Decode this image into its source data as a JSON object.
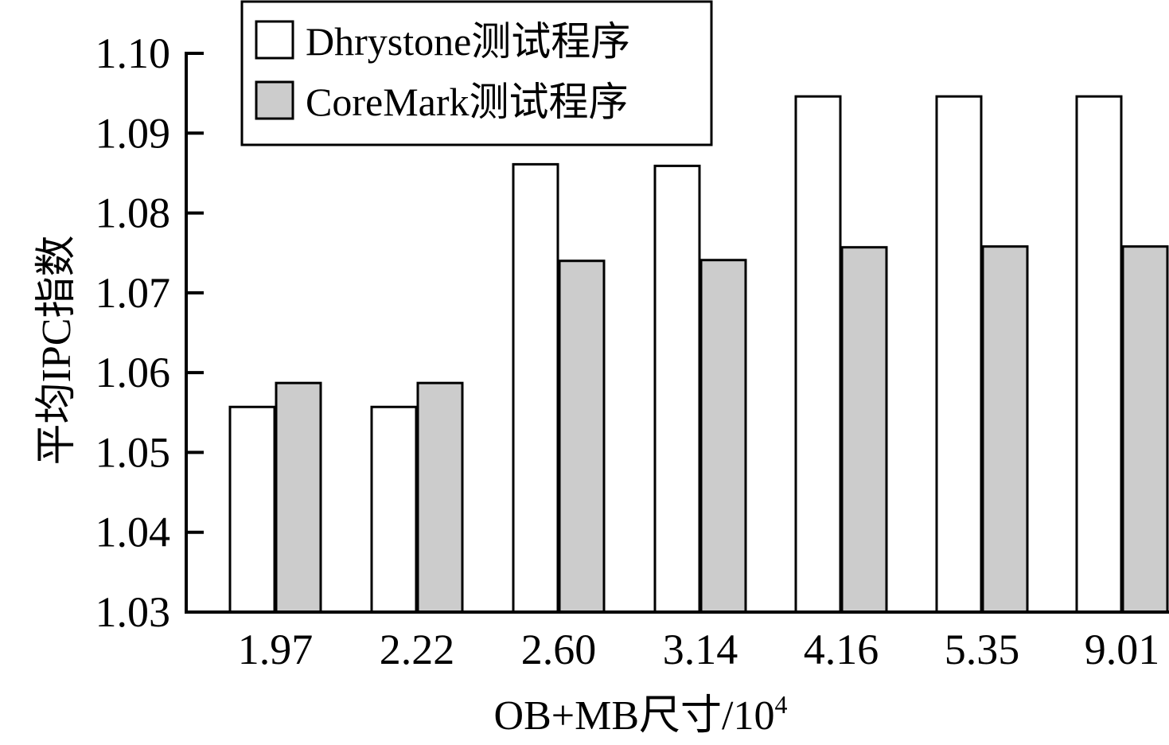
{
  "chart_data": {
    "type": "bar",
    "title": "",
    "xlabel": "OB+MB尺寸/10",
    "xlabel_superscript": "4",
    "ylabel": "平均IPC指数",
    "categories": [
      "1.97",
      "2.22",
      "2.60",
      "3.14",
      "4.16",
      "5.35",
      "9.01"
    ],
    "series": [
      {
        "name": "Dhrystone测试程序",
        "color": "#ffffff",
        "values": [
          1.0557,
          1.0557,
          1.0861,
          1.0859,
          1.0946,
          1.0946,
          1.0946
        ]
      },
      {
        "name": "CoreMark测试程序",
        "color": "#cccccc",
        "values": [
          1.0587,
          1.0587,
          1.074,
          1.0741,
          1.0757,
          1.0758,
          1.0758
        ]
      }
    ],
    "ylim": [
      1.03,
      1.1
    ],
    "yticks": [
      "1.03",
      "1.04",
      "1.05",
      "1.06",
      "1.07",
      "1.08",
      "1.09",
      "1.10"
    ],
    "grid": false,
    "legend_position": "top-left"
  }
}
